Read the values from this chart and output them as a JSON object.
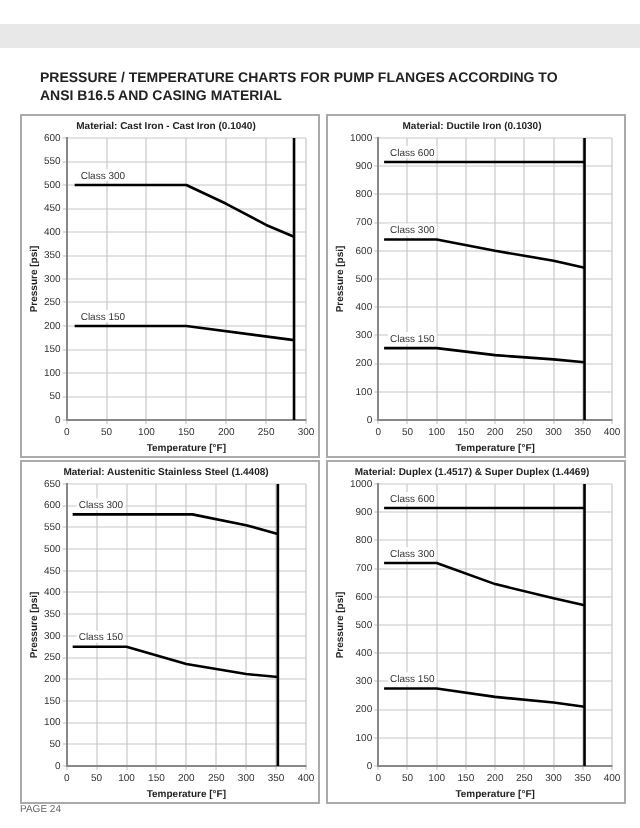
{
  "chart_data": [
    {
      "type": "line",
      "title": "Material: Cast Iron - Cast Iron (0.1040)",
      "xlabel": "Temperature [°F]",
      "ylabel": "Pressure [psi]",
      "annotations": [
        "PRESSURE / TEMPERATURE CHARTS FOR PUMP FLANGES ACCORDING TO ANSI B16.5 AND CASING MATERIAL"
      ],
      "xlim": [
        0,
        300
      ],
      "xticks": [
        0,
        50,
        100,
        150,
        200,
        250,
        300
      ],
      "ylim": [
        0,
        600
      ],
      "yticks": [
        0,
        50,
        100,
        150,
        200,
        250,
        300,
        350,
        400,
        450,
        500,
        550,
        600
      ],
      "grid": true,
      "legend": false,
      "marker": "none",
      "line_style": "solid",
      "ref_lines": [
        {
          "axis": "x",
          "value": 285,
          "color": "#000000"
        }
      ],
      "series": [
        {
          "name": "Class 300",
          "color": "#000000",
          "x": [
            10,
            150,
            200,
            250,
            285
          ],
          "values": [
            500,
            500,
            460,
            415,
            390
          ]
        },
        {
          "name": "Class 150",
          "color": "#000000",
          "x": [
            10,
            150,
            285
          ],
          "values": [
            200,
            200,
            170
          ]
        }
      ]
    },
    {
      "type": "line",
      "title": "Material: Ductile Iron (0.1030)",
      "xlabel": "Temperature [°F]",
      "ylabel": "Pressure [psi]",
      "xlim": [
        0,
        400
      ],
      "xticks": [
        0,
        50,
        100,
        150,
        200,
        250,
        300,
        350,
        400
      ],
      "ylim": [
        0,
        1000
      ],
      "yticks": [
        0,
        100,
        200,
        300,
        400,
        500,
        600,
        700,
        800,
        900,
        1000
      ],
      "grid": true,
      "legend": false,
      "marker": "none",
      "line_style": "solid",
      "ref_lines": [
        {
          "axis": "x",
          "value": 353,
          "color": "#000000"
        }
      ],
      "series": [
        {
          "name": "Class 600",
          "color": "#000000",
          "x": [
            10,
            353
          ],
          "values": [
            915,
            915
          ]
        },
        {
          "name": "Class 300",
          "color": "#000000",
          "x": [
            10,
            100,
            200,
            300,
            353
          ],
          "values": [
            640,
            640,
            600,
            565,
            540
          ]
        },
        {
          "name": "Class 150",
          "color": "#000000",
          "x": [
            10,
            100,
            200,
            300,
            353
          ],
          "values": [
            255,
            255,
            230,
            215,
            205
          ]
        }
      ]
    },
    {
      "type": "line",
      "title": "Material: Austenitic Stainless Steel (1.4408)",
      "xlabel": "Temperature [°F]",
      "ylabel": "Pressure [psi]",
      "xlim": [
        0,
        400
      ],
      "xticks": [
        0,
        50,
        100,
        150,
        200,
        250,
        300,
        350,
        400
      ],
      "ylim": [
        0,
        650
      ],
      "yticks": [
        0,
        50,
        100,
        150,
        200,
        250,
        300,
        350,
        400,
        450,
        500,
        550,
        600,
        650
      ],
      "grid": true,
      "legend": false,
      "marker": "none",
      "line_style": "solid",
      "ref_lines": [
        {
          "axis": "x",
          "value": 353,
          "color": "#000000"
        }
      ],
      "series": [
        {
          "name": "Class 300",
          "color": "#000000",
          "x": [
            10,
            210,
            300,
            353
          ],
          "values": [
            580,
            580,
            555,
            535
          ]
        },
        {
          "name": "Class 150",
          "color": "#000000",
          "x": [
            10,
            100,
            200,
            300,
            353
          ],
          "values": [
            275,
            275,
            235,
            212,
            205
          ]
        }
      ]
    },
    {
      "type": "line",
      "title": "Material: Duplex (1.4517) & Super Duplex (1.4469)",
      "xlabel": "Temperature [°F]",
      "ylabel": "Pressure [psi]",
      "annotations": [
        "PAGE 24"
      ],
      "xlim": [
        0,
        400
      ],
      "xticks": [
        0,
        50,
        100,
        150,
        200,
        250,
        300,
        350,
        400
      ],
      "ylim": [
        0,
        1000
      ],
      "yticks": [
        0,
        100,
        200,
        300,
        400,
        500,
        600,
        700,
        800,
        900,
        1000
      ],
      "grid": true,
      "legend": false,
      "marker": "none",
      "line_style": "solid",
      "ref_lines": [
        {
          "axis": "x",
          "value": 353,
          "color": "#000000"
        }
      ],
      "series": [
        {
          "name": "Class 600",
          "color": "#000000",
          "x": [
            10,
            353
          ],
          "values": [
            915,
            915
          ]
        },
        {
          "name": "Class 300",
          "color": "#000000",
          "x": [
            10,
            100,
            200,
            300,
            353
          ],
          "values": [
            720,
            720,
            645,
            595,
            570
          ]
        },
        {
          "name": "Class 150",
          "color": "#000000",
          "x": [
            10,
            100,
            200,
            300,
            353
          ],
          "values": [
            275,
            275,
            245,
            225,
            210
          ]
        }
      ]
    }
  ]
}
